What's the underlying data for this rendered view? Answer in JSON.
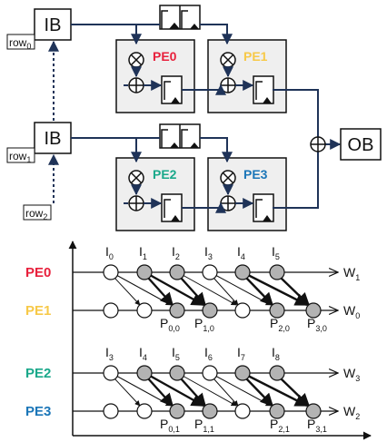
{
  "colors": {
    "pe0": "#e8203c",
    "pe1": "#f7c948",
    "pe2": "#1aa88a",
    "pe3": "#1b76b8",
    "wire": "#1f3358",
    "box_fill": "#efefef",
    "node_filled": "#b3b3b3"
  },
  "architecture": {
    "ib_top": "IB",
    "ib_bottom": "IB",
    "ob": "OB",
    "row0": {
      "base": "row",
      "sub": "0"
    },
    "row1": {
      "base": "row",
      "sub": "1"
    },
    "row2": {
      "base": "row",
      "sub": "2"
    },
    "pe_labels": [
      "PE0",
      "PE1",
      "PE2",
      "PE3"
    ],
    "icons": [
      "multiply-icon",
      "add-icon",
      "register-icon",
      "fifo-icon"
    ]
  },
  "dataflow": {
    "row_labels": [
      "PE0",
      "PE1",
      "PE2",
      "PE3"
    ],
    "inputs_top": [
      {
        "base": "I",
        "sub": "0"
      },
      {
        "base": "I",
        "sub": "1"
      },
      {
        "base": "I",
        "sub": "2"
      },
      {
        "base": "I",
        "sub": "3"
      },
      {
        "base": "I",
        "sub": "4"
      },
      {
        "base": "I",
        "sub": "5"
      }
    ],
    "inputs_bottom": [
      {
        "base": "I",
        "sub": "3"
      },
      {
        "base": "I",
        "sub": "4"
      },
      {
        "base": "I",
        "sub": "5"
      },
      {
        "base": "I",
        "sub": "6"
      },
      {
        "base": "I",
        "sub": "7"
      },
      {
        "base": "I",
        "sub": "8"
      }
    ],
    "weights": [
      {
        "base": "W",
        "sub": "1"
      },
      {
        "base": "W",
        "sub": "0"
      },
      {
        "base": "W",
        "sub": "3"
      },
      {
        "base": "W",
        "sub": "2"
      }
    ],
    "outputs_top": [
      {
        "base": "P",
        "sub": "0,0"
      },
      {
        "base": "P",
        "sub": "1,0"
      },
      {
        "base": "P",
        "sub": "2,0"
      },
      {
        "base": "P",
        "sub": "3,0"
      }
    ],
    "outputs_bottom": [
      {
        "base": "P",
        "sub": "0,1"
      },
      {
        "base": "P",
        "sub": "1,1"
      },
      {
        "base": "P",
        "sub": "2,1"
      },
      {
        "base": "P",
        "sub": "3,1"
      }
    ],
    "filled_pattern": [
      [
        false,
        true,
        true,
        false,
        true,
        true
      ],
      [
        false,
        false,
        true,
        true,
        false,
        true,
        true
      ]
    ]
  }
}
